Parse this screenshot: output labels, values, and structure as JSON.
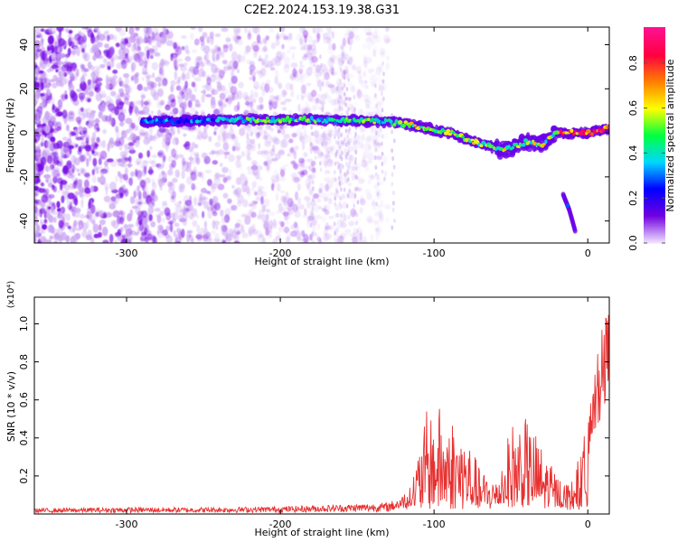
{
  "title": "C2E2.2024.153.19.38.G31",
  "chart_data": [
    {
      "type": "heatmap",
      "xlabel": "Height of straight line (km)",
      "ylabel": "Frequency (Hz)",
      "xlim": [
        -360,
        14
      ],
      "ylim": [
        -50,
        48
      ],
      "x_ticks": [
        -300,
        -200,
        -100,
        0
      ],
      "y_ticks": [
        -40,
        -20,
        0,
        20,
        40
      ],
      "colorbar": {
        "label": "Normalized spectral amplitude",
        "range": [
          0,
          0.96
        ],
        "ticks": [
          0.0,
          0.2,
          0.4,
          0.6,
          0.8
        ],
        "colormap": [
          "#f0e0ff",
          "#7000e0",
          "#0000ff",
          "#00d8ff",
          "#00ff40",
          "#ffff00",
          "#ff8000",
          "#ff0040",
          "#ff1090"
        ]
      },
      "signal_track": {
        "points": [
          [
            -290,
            5
          ],
          [
            -230,
            6
          ],
          [
            -180,
            6
          ],
          [
            -130,
            5
          ],
          [
            -110,
            3
          ],
          [
            -90,
            0
          ],
          [
            -70,
            -5
          ],
          [
            -55,
            -8
          ],
          [
            -40,
            -4
          ],
          [
            -30,
            -5
          ],
          [
            -20,
            0
          ],
          [
            -10,
            0
          ],
          [
            0,
            0
          ],
          [
            14,
            2
          ]
        ],
        "branch": [
          [
            -16,
            -28
          ],
          [
            -12,
            -35
          ],
          [
            -8,
            -45
          ]
        ]
      },
      "noise_region": [
        -360,
        -130
      ]
    },
    {
      "type": "line",
      "xlabel": "Height of straight line (km)",
      "ylabel": "SNR (10 * v/v)",
      "y_multiplier": "(x10⁴)",
      "xlim": [
        -360,
        14
      ],
      "ylim": [
        0,
        1.14
      ],
      "x_ticks": [
        -300,
        -200,
        -100,
        0
      ],
      "y_ticks": [
        0.2,
        0.4,
        0.6,
        0.8,
        1.0
      ],
      "color": "#e83030",
      "envelope": [
        [
          -360,
          0.03
        ],
        [
          -300,
          0.035
        ],
        [
          -250,
          0.035
        ],
        [
          -200,
          0.04
        ],
        [
          -160,
          0.05
        ],
        [
          -130,
          0.06
        ],
        [
          -115,
          0.12
        ],
        [
          -105,
          0.5
        ],
        [
          -98,
          0.55
        ],
        [
          -90,
          0.5
        ],
        [
          -80,
          0.4
        ],
        [
          -75,
          0.3
        ],
        [
          -70,
          0.2
        ],
        [
          -60,
          0.15
        ],
        [
          -50,
          0.45
        ],
        [
          -42,
          0.5
        ],
        [
          -35,
          0.4
        ],
        [
          -28,
          0.3
        ],
        [
          -20,
          0.18
        ],
        [
          -12,
          0.12
        ],
        [
          -6,
          0.25
        ],
        [
          0,
          0.45
        ],
        [
          5,
          0.8
        ],
        [
          10,
          1.0
        ],
        [
          14,
          1.1
        ]
      ]
    }
  ]
}
